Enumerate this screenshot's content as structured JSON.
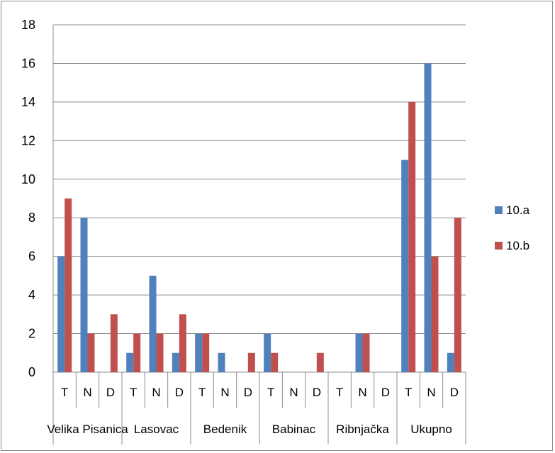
{
  "chart_data": {
    "type": "bar",
    "title": "",
    "xlabel": "",
    "ylabel": "",
    "ylim": [
      0,
      18
    ],
    "yticks": [
      "0",
      "2",
      "4",
      "6",
      "8",
      "10",
      "12",
      "14",
      "16",
      "18"
    ],
    "grid": true,
    "legend_position": "right",
    "groups": [
      "Velika Pisanica",
      "Lasovac",
      "Bedenik",
      "Babinac",
      "Ribnjačka",
      "Ukupno"
    ],
    "subcategories": [
      "T",
      "N",
      "D"
    ],
    "series": [
      {
        "name": "10.a",
        "color": "#4f81bd",
        "values": [
          6,
          8,
          0,
          1,
          5,
          1,
          2,
          1,
          0,
          2,
          0,
          0,
          0,
          2,
          0,
          11,
          16,
          1
        ]
      },
      {
        "name": "10.b",
        "color": "#c0504d",
        "values": [
          9,
          2,
          3,
          2,
          2,
          3,
          2,
          0,
          1,
          1,
          0,
          1,
          0,
          2,
          0,
          14,
          6,
          8
        ]
      }
    ]
  }
}
